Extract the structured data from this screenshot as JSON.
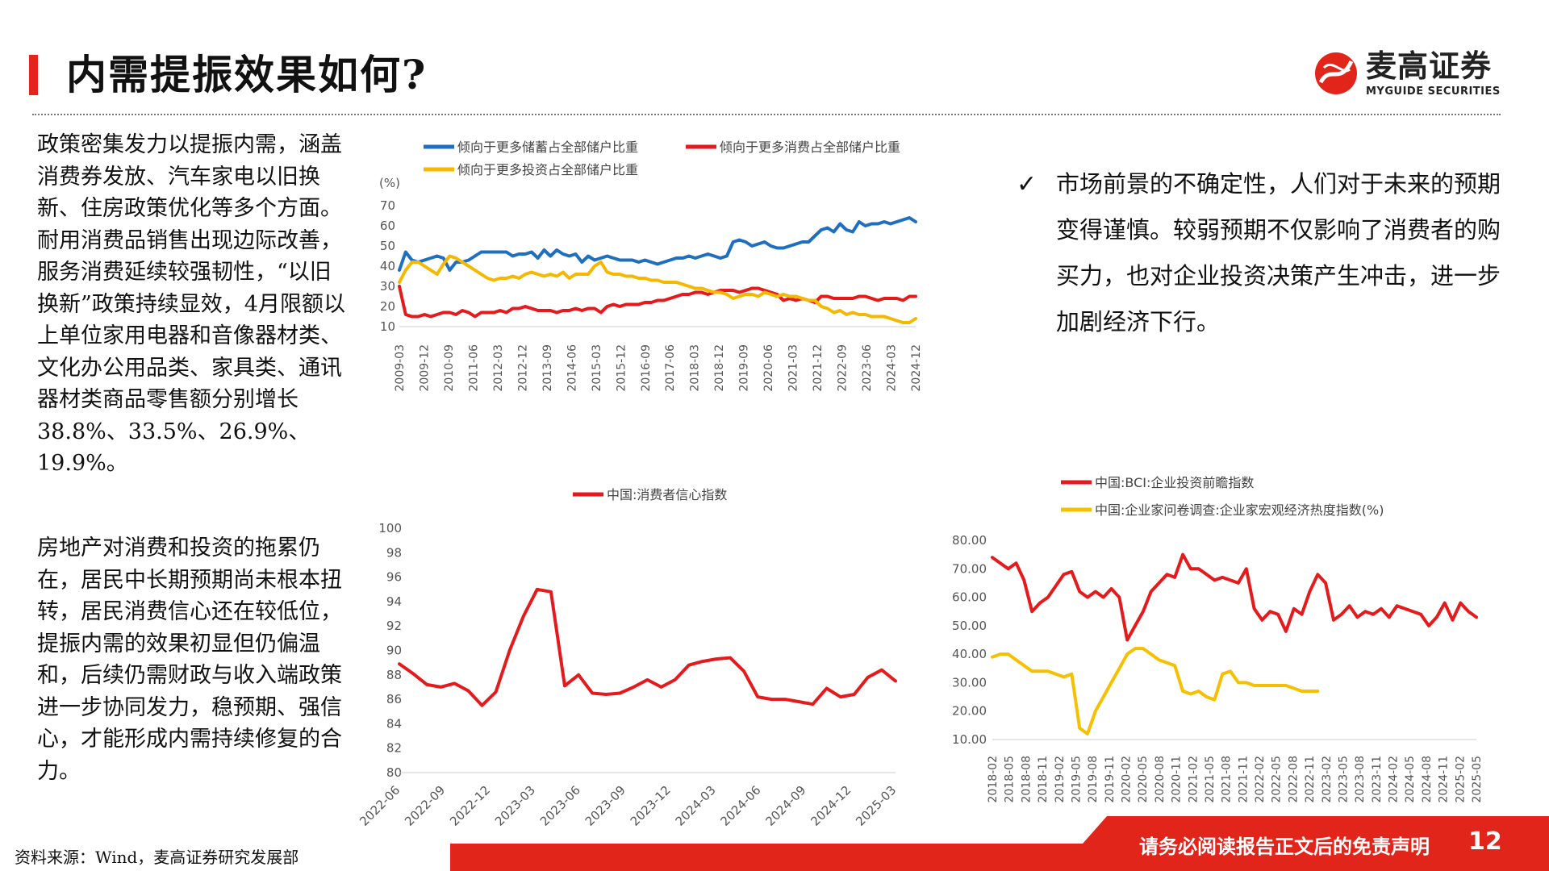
{
  "header": {
    "title": "内需提振效果如何?",
    "logo_cn": "麦高证券",
    "logo_en": "MYGUIDE SECURITIES"
  },
  "left_text": {
    "paragraph1": "政策密集发力以提振内需，涵盖消费券发放、汽车家电以旧换新、住房政策优化等多个方面。耐用消费品销售出现边际改善，服务消费延续较强韧性，“以旧换新”政策持续显效，4月限额以上单位家用电器和音像器材类、文化办公用品类、家具类、通讯器材类商品零售额分别增长38.8%、33.5%、26.9%、19.9%。",
    "paragraph2": "房地产对消费和投资的拖累仍在，居民中长期预期尚未根本扭转，居民消费信心还在较低位，提振内需的效果初显但仍偏温和，后续仍需财政与收入端政策进一步协同发力，稳预期、强信心，才能形成内需持续修复的合力。"
  },
  "right_text": {
    "check": "✓",
    "text": "市场前景的不确定性，人们对于未来的预期变得谨慎。较弱预期不仅影响了消费者的购买力，也对企业投资决策产生冲击，进一步加剧经济下行。"
  },
  "footer": {
    "source": "资料来源：Wind，麦高证券研究发展部",
    "disclaimer": "请务必阅读报告正文后的免责声明",
    "page": "12"
  },
  "chart_data": [
    {
      "type": "line",
      "unit_label": "(%)",
      "ylim": [
        10,
        70
      ],
      "yticks": [
        "10",
        "20",
        "30",
        "40",
        "50",
        "60",
        "70"
      ],
      "xticks": [
        "2009-03",
        "2009-12",
        "2010-09",
        "2011-06",
        "2012-03",
        "2012-12",
        "2013-09",
        "2014-06",
        "2015-03",
        "2015-12",
        "2016-09",
        "2017-06",
        "2018-03",
        "2018-12",
        "2019-09",
        "2020-06",
        "2021-03",
        "2021-12",
        "2022-09",
        "2023-06",
        "2024-03",
        "2024-12"
      ],
      "grid": false,
      "legend": "top",
      "series": [
        {
          "name": "倾向于更多储蓄占全部储户比重",
          "color": "#1f6fc1",
          "values": [
            38,
            47,
            43,
            42,
            43,
            44,
            45,
            44,
            38,
            42,
            42,
            43,
            45,
            47,
            47,
            47,
            47,
            47,
            45,
            46,
            46,
            47,
            44,
            48,
            45,
            48,
            46,
            45,
            46,
            42,
            45,
            43,
            44,
            45,
            44,
            43,
            43,
            43,
            42,
            43,
            42,
            41,
            42,
            43,
            44,
            44,
            45,
            44,
            45,
            46,
            45,
            44,
            45,
            52,
            53,
            52,
            50,
            51,
            52,
            50,
            49,
            49,
            50,
            51,
            52,
            52,
            55,
            58,
            59,
            57,
            61,
            58,
            57,
            62,
            60,
            61,
            61,
            62,
            61,
            62,
            63,
            64,
            62
          ]
        },
        {
          "name": "倾向于更多消费占全部储户比重",
          "color": "#e41a1c",
          "values": [
            30,
            16,
            15,
            15,
            16,
            15,
            16,
            17,
            17,
            16,
            18,
            17,
            15,
            17,
            17,
            17,
            18,
            17,
            19,
            19,
            20,
            19,
            18,
            18,
            18,
            17,
            18,
            18,
            19,
            18,
            19,
            19,
            17,
            20,
            21,
            20,
            21,
            21,
            21,
            22,
            22,
            23,
            23,
            24,
            25,
            26,
            26,
            27,
            27,
            26,
            27,
            28,
            28,
            28,
            27,
            28,
            29,
            29,
            28,
            27,
            26,
            23,
            24,
            23,
            24,
            23,
            22,
            25,
            25,
            24,
            24,
            24,
            24,
            25,
            25,
            24,
            23,
            24,
            24,
            24,
            23,
            25,
            25
          ]
        },
        {
          "name": "倾向于更多投资占全部储户比重",
          "color": "#f5b800",
          "values": [
            32,
            38,
            42,
            42,
            40,
            38,
            36,
            41,
            45,
            44,
            42,
            40,
            38,
            36,
            34,
            33,
            34,
            34,
            35,
            34,
            36,
            37,
            36,
            35,
            36,
            35,
            37,
            34,
            36,
            36,
            36,
            40,
            42,
            37,
            36,
            36,
            35,
            35,
            34,
            34,
            33,
            33,
            32,
            32,
            32,
            31,
            30,
            29,
            29,
            28,
            27,
            27,
            26,
            24,
            25,
            26,
            26,
            25,
            27,
            26,
            25,
            26,
            25,
            25,
            24,
            23,
            23,
            20,
            19,
            17,
            18,
            16,
            17,
            16,
            16,
            15,
            15,
            15,
            14,
            13,
            12,
            12,
            14
          ]
        }
      ]
    },
    {
      "type": "line",
      "ylim": [
        80,
        100
      ],
      "yticks": [
        "80",
        "82",
        "84",
        "86",
        "88",
        "90",
        "92",
        "94",
        "96",
        "98",
        "100"
      ],
      "xticks": [
        "2022-06",
        "2022-09",
        "2022-12",
        "2023-03",
        "2023-06",
        "2023-09",
        "2023-12",
        "2024-03",
        "2024-06",
        "2024-09",
        "2024-12",
        "2025-03"
      ],
      "grid": false,
      "legend": "top",
      "series": [
        {
          "name": "中国:消费者信心指数",
          "color": "#e41a1c",
          "values": [
            88.9,
            88.1,
            87.2,
            87.0,
            87.3,
            86.7,
            85.5,
            86.6,
            90.0,
            92.8,
            95.0,
            94.8,
            87.1,
            88.0,
            86.5,
            86.4,
            86.5,
            87.0,
            87.6,
            87.0,
            87.6,
            88.8,
            89.1,
            89.3,
            89.4,
            88.3,
            86.2,
            86.0,
            86.0,
            85.8,
            85.6,
            86.9,
            86.2,
            86.4,
            87.8,
            88.4,
            87.5
          ]
        }
      ]
    },
    {
      "type": "line",
      "ylim": [
        10,
        80
      ],
      "yticks": [
        "10.00",
        "20.00",
        "30.00",
        "40.00",
        "50.00",
        "60.00",
        "70.00",
        "80.00"
      ],
      "xticks": [
        "2018-02",
        "2018-05",
        "2018-08",
        "2018-11",
        "2019-02",
        "2019-05",
        "2019-08",
        "2019-11",
        "2020-02",
        "2020-05",
        "2020-08",
        "2020-11",
        "2021-02",
        "2021-05",
        "2021-08",
        "2021-11",
        "2022-02",
        "2022-05",
        "2022-08",
        "2022-11",
        "2023-02",
        "2023-05",
        "2023-08",
        "2023-11",
        "2024-02",
        "2024-05",
        "2024-08",
        "2024-11",
        "2025-02",
        "2025-05"
      ],
      "grid": false,
      "legend": "top",
      "series": [
        {
          "name": "中国:BCI:企业投资前瞻指数",
          "color": "#e41a1c",
          "values": [
            74,
            72,
            70,
            72,
            66,
            55,
            58,
            60,
            64,
            68,
            69,
            62,
            60,
            62,
            60,
            63,
            60,
            45,
            50,
            55,
            62,
            65,
            68,
            67,
            75,
            70,
            70,
            68,
            66,
            67,
            66,
            65,
            70,
            56,
            52,
            55,
            54,
            48,
            56,
            54,
            62,
            68,
            65,
            52,
            54,
            57,
            53,
            55,
            54,
            56,
            53,
            57,
            56,
            55,
            54,
            50,
            53,
            58,
            52,
            58,
            55,
            53
          ]
        },
        {
          "name": "中国:企业家问卷调查:企业家宏观经济热度指数(%)",
          "color": "#f5c000",
          "values": [
            39,
            40,
            40,
            38,
            36,
            34,
            34,
            34,
            33,
            32,
            33,
            14,
            12,
            20,
            25,
            30,
            35,
            40,
            42,
            42,
            40,
            38,
            37,
            36,
            27,
            26,
            27,
            25,
            24,
            33,
            34,
            30,
            30,
            29,
            29,
            29,
            29,
            29,
            28,
            27,
            27,
            27
          ]
        }
      ]
    }
  ]
}
